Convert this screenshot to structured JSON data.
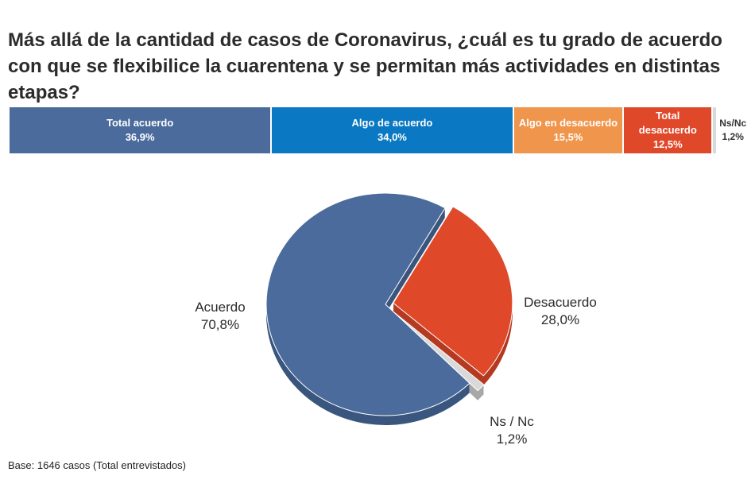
{
  "title": "Más allá de la cantidad de casos de Coronavirus, ¿cuál es tu grado de acuerdo con que se flexibilice la cuarentena y se permitan más actividades en distintas etapas?",
  "footer": "Base: 1646 casos (Total entrevistados)",
  "chart_data": [
    {
      "type": "bar",
      "orientation": "horizontal-stacked",
      "categories": [
        "Total acuerdo",
        "Algo de acuerdo",
        "Algo en desacuerdo",
        "Total desacuerdo",
        "Ns/Nc"
      ],
      "values": [
        36.9,
        34.0,
        15.5,
        12.5,
        1.2
      ],
      "labels": [
        "36,9%",
        "34,0%",
        "15,5%",
        "12,5%",
        "1,2%"
      ],
      "colors": [
        "#4a6b9b",
        "#0a78c2",
        "#f0954c",
        "#e0482a",
        "#d9d9d9"
      ]
    },
    {
      "type": "pie",
      "categories": [
        "Acuerdo",
        "Desacuerdo",
        "Ns / Nc"
      ],
      "values": [
        70.8,
        28.0,
        1.2
      ],
      "labels": [
        "70,8%",
        "28,0%",
        "1,2%"
      ],
      "colors": [
        "#4a6b9b",
        "#e0482a",
        "#d9d9d9"
      ],
      "exploded": [
        "Desacuerdo",
        "Ns / Nc"
      ]
    }
  ]
}
